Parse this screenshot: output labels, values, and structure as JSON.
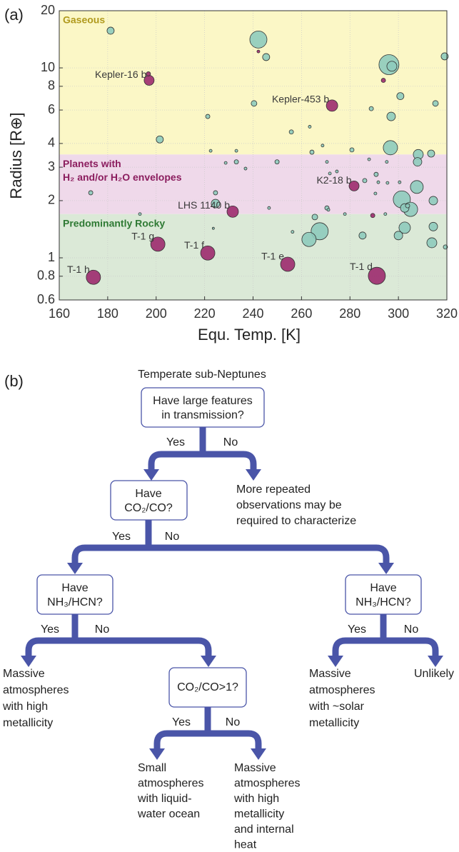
{
  "panel_labels": [
    "(a)",
    "(b)"
  ],
  "chart_data": {
    "type": "scatter",
    "xlabel": "Equ. Temp. [K]",
    "ylabel": "Radius [R⊕]",
    "xlim": [
      160,
      320
    ],
    "xticks": [
      160,
      180,
      200,
      220,
      240,
      260,
      280,
      300,
      320
    ],
    "ylim": [
      0.6,
      20
    ],
    "yticks": [
      0.6,
      0.8,
      1,
      2,
      3,
      4,
      6,
      8,
      10,
      20
    ],
    "ylog": true,
    "grid": true,
    "regions": [
      {
        "label": [
          "Gaseous"
        ],
        "ylim": [
          3.5,
          20
        ],
        "color": "#fbf7c6",
        "text_color": "#b09a1e"
      },
      {
        "label": [
          "Planets with",
          "H₂ and/or H₂O envelopes"
        ],
        "ylim": [
          1.7,
          3.5
        ],
        "color": "#efd9ea",
        "text_color": "#8b1d5e"
      },
      {
        "label": [
          "Predominantly Rocky"
        ],
        "ylim": [
          0.6,
          1.7
        ],
        "color": "#dbe9d7",
        "text_color": "#2f7a34"
      }
    ],
    "series": [
      {
        "color": "#8ecbbd",
        "x": [
          181.2,
          242.2,
          245.4,
          319.1,
          296.1,
          297.3,
          300.8,
          240.4,
          288.8,
          297.0,
          315.3,
          221.3,
          201.5,
          255.8,
          263.4,
          296.7,
          222.5,
          233.1,
          268.7,
          264.3,
          280.8,
          308.2,
          313.5,
          307.9,
          228.7,
          233.1,
          236.9,
          249.9,
          270.5,
          287.9,
          295.2,
          271.7,
          274.6,
          286.1,
          290.8,
          291.7,
          290.5,
          295.5,
          307.6,
          300.5,
          301.4,
          305.0,
          302.6,
          303.8,
          314.4,
          224.5,
          173.0,
          193.3,
          224.5,
          246.6,
          270.5,
          271.1,
          277.9,
          265.5,
          256.3,
          267.5,
          263.1,
          285.2,
          302.6,
          300.0,
          314.4,
          313.8,
          319.4,
          223.6,
          294.6
        ],
        "values": [
          15.7,
          14.1,
          11.4,
          11.5,
          10.4,
          10.2,
          7.1,
          6.5,
          6.1,
          5.55,
          6.5,
          5.55,
          4.2,
          4.6,
          4.9,
          3.8,
          3.66,
          3.66,
          3.9,
          3.6,
          3.7,
          3.5,
          3.54,
          3.2,
          3.16,
          3.2,
          2.95,
          3.2,
          3.2,
          3.3,
          3.2,
          2.78,
          2.85,
          2.55,
          2.75,
          2.5,
          2.18,
          2.48,
          2.36,
          2.5,
          2.03,
          1.8,
          1.83,
          1.88,
          2.0,
          2.2,
          2.2,
          1.7,
          1.93,
          1.83,
          1.83,
          1.79,
          1.7,
          1.64,
          1.37,
          1.38,
          1.25,
          1.31,
          1.44,
          1.31,
          1.46,
          1.2,
          1.14,
          1.43,
          1.7
        ],
        "sizes": [
          5,
          12,
          5,
          5,
          14,
          7,
          5,
          4,
          3,
          6,
          4,
          3,
          5,
          3,
          2,
          10,
          2,
          2,
          2,
          3,
          3,
          7,
          5,
          6,
          2,
          3,
          2,
          3,
          2,
          2,
          2,
          2,
          2,
          3,
          3,
          2,
          2,
          2,
          9,
          2,
          12,
          10,
          6,
          3,
          6,
          3,
          3,
          2,
          6,
          2,
          3,
          2,
          2,
          4,
          2,
          12,
          10,
          5,
          8,
          6,
          6,
          7,
          3,
          1.5,
          2
        ]
      },
      {
        "color": "#9c2a6e",
        "x": [
          197.1,
          196.8,
          272.6,
          281.7,
          231.6,
          200.7,
          221.3,
          254.3,
          174.1,
          291.1,
          242.2,
          293.8,
          289.4
        ],
        "values": [
          8.6,
          9.3,
          6.33,
          2.39,
          1.75,
          1.18,
          1.06,
          0.925,
          0.79,
          0.804,
          12.2,
          8.6,
          1.67
        ],
        "sizes": [
          7,
          3,
          8,
          7,
          8,
          10,
          10,
          10,
          10,
          12,
          2,
          3,
          3
        ],
        "point_labels": [
          "Kepler-16 b",
          null,
          "Kepler-453 b",
          "K2-18 b",
          "LHS 1140 b",
          "T-1 g",
          "T-1 f",
          "T-1 e",
          "T-1 h",
          "T-1 d",
          null,
          null,
          null
        ]
      }
    ]
  },
  "diagram": {
    "title": "Temperate sub-Neptunes",
    "nodes": [
      {
        "lines": [
          "Have large features",
          "in transmission?"
        ]
      },
      {
        "lines": [
          "Have",
          "CO₂/CO?"
        ]
      },
      {
        "lines": [
          "Have",
          "NH₃/HCN?"
        ]
      },
      {
        "lines": [
          "Have",
          "NH₃/HCN?"
        ]
      },
      {
        "lines": [
          "CO₂/CO>1?"
        ]
      }
    ],
    "branches": [
      {
        "yes": "Yes",
        "no": "No"
      },
      {
        "yes": "Yes",
        "no": "No"
      },
      {
        "yes": "Yes",
        "no": "No"
      },
      {
        "yes": "Yes",
        "no": "No"
      },
      {
        "yes": "Yes",
        "no": "No"
      }
    ],
    "outcomes": [
      {
        "lines": [
          "More repeated",
          "observations may be",
          "required to characterize"
        ]
      },
      {
        "lines": [
          "Massive",
          "atmospheres",
          "with high",
          "metallicity"
        ]
      },
      {
        "lines": [
          "Massive",
          "atmospheres",
          "with ~solar",
          "metallicity"
        ]
      },
      {
        "lines": [
          "Unlikely"
        ]
      },
      {
        "lines": [
          "Small",
          "atmospheres",
          "with liquid-",
          "water ocean"
        ]
      },
      {
        "lines": [
          "Massive",
          "atmospheres",
          "with high",
          "metallicity",
          "and internal",
          "heat"
        ]
      }
    ]
  }
}
